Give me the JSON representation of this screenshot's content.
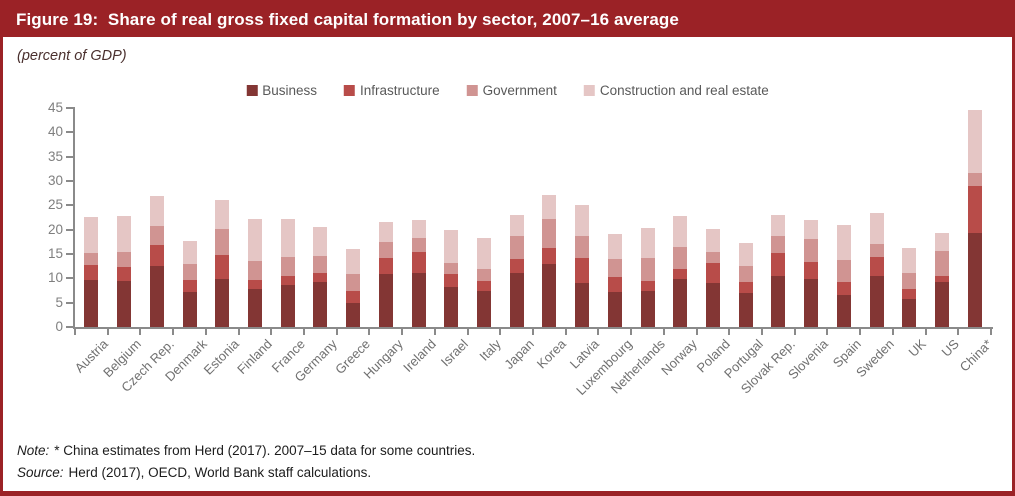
{
  "header": {
    "title": "Figure 19:  Share of real gross fixed capital formation by sector, 2007–16 average",
    "subtitle": "(percent of GDP)"
  },
  "footer": {
    "note_label": "Note:",
    "note_text": "* China estimates from Herd (2017). 2007–15 data for some countries.",
    "source_label": "Source:",
    "source_text": "Herd (2017), OECD, World Bank staff calculations."
  },
  "colors": {
    "frame": "#9B2226",
    "axis": "#8a8a8a",
    "ytick_label": "#7f7f7f",
    "xtick_label": "#707070",
    "legend_text": "#595959",
    "title_bg": "#9B2226",
    "title_text": "#ffffff"
  },
  "chart_data": {
    "type": "bar",
    "stacked": true,
    "title": "Figure 19: Share of real gross fixed capital formation by sector, 2007–16 average",
    "subtitle": "(percent of GDP)",
    "xlabel": "",
    "ylabel": "percent of GDP",
    "ylim": [
      0,
      45
    ],
    "ytick_step": 5,
    "grid": false,
    "legend_position": "top",
    "categories": [
      "Austria",
      "Belgium",
      "Czech Rep.",
      "Denmark",
      "Estonia",
      "Finland",
      "France",
      "Germany",
      "Greece",
      "Hungary",
      "Ireland",
      "Israel",
      "Italy",
      "Japan",
      "Korea",
      "Latvia",
      "Luxembourg",
      "Netherlands",
      "Norway",
      "Poland",
      "Portugal",
      "Slovak Rep.",
      "Slovenia",
      "Spain",
      "Sweden",
      "UK",
      "US",
      "China*"
    ],
    "series": [
      {
        "name": "Business",
        "color": "#833634",
        "values": [
          9.7,
          9.5,
          12.5,
          7.1,
          9.8,
          7.8,
          8.6,
          9.2,
          5.0,
          10.8,
          11.0,
          8.2,
          7.3,
          11.2,
          13.0,
          9.0,
          7.1,
          7.5,
          9.9,
          9.0,
          6.9,
          10.5,
          9.8,
          6.6,
          10.5,
          5.8,
          9.3,
          19.3
        ]
      },
      {
        "name": "Infrastructure",
        "color": "#B84C49",
        "values": [
          3.0,
          2.8,
          4.4,
          2.5,
          5.1,
          1.8,
          1.9,
          1.9,
          2.4,
          3.3,
          4.4,
          2.6,
          2.2,
          2.7,
          3.3,
          5.1,
          3.2,
          2.0,
          2.1,
          4.1,
          2.4,
          4.8,
          3.6,
          2.6,
          3.8,
          2.1,
          1.1,
          9.7
        ]
      },
      {
        "name": "Government",
        "color": "#D09492",
        "values": [
          2.5,
          3.1,
          3.8,
          3.3,
          5.2,
          4.0,
          3.9,
          3.5,
          3.4,
          3.4,
          2.8,
          2.4,
          2.5,
          4.8,
          5.8,
          4.7,
          3.7,
          4.6,
          4.4,
          2.4,
          3.3,
          3.4,
          4.7,
          4.6,
          2.8,
          3.1,
          5.2,
          2.6
        ]
      },
      {
        "name": "Construction and real estate",
        "color": "#E5C6C5",
        "values": [
          7.4,
          7.5,
          6.2,
          4.7,
          6.1,
          8.5,
          7.8,
          6.0,
          5.3,
          4.0,
          3.8,
          6.7,
          6.2,
          4.3,
          5.0,
          6.2,
          5.1,
          6.2,
          6.5,
          4.7,
          4.6,
          4.4,
          3.8,
          7.1,
          6.4,
          5.2,
          3.8,
          12.9
        ]
      }
    ]
  }
}
